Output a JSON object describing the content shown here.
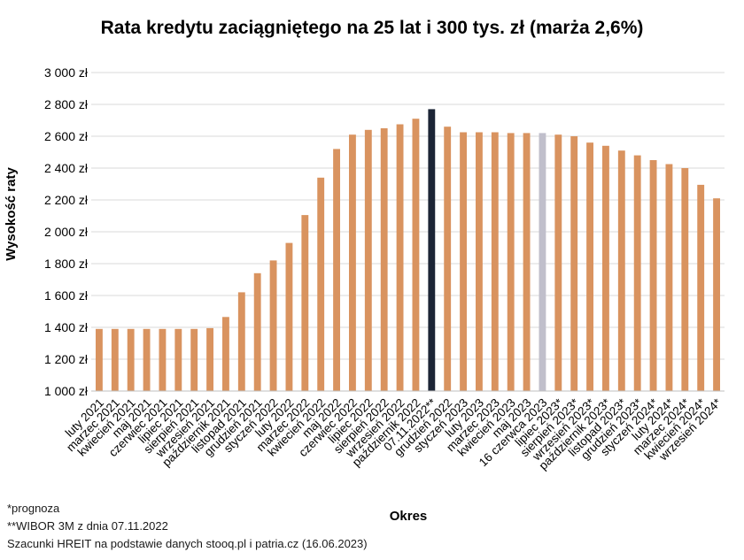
{
  "chart_data": {
    "type": "bar",
    "title": "Rata kredytu zaciągniętego na 25 lat i 300 tys. zł (marża 2,6%)",
    "xlabel": "Okres",
    "ylabel": "Wysokość raty",
    "ylim": [
      1000,
      3000
    ],
    "yticks": [
      "1 000 zł",
      "1 200 zł",
      "1 400 zł",
      "1 600 zł",
      "1 800 zł",
      "2 000 zł",
      "2 200 zł",
      "2 400 zł",
      "2 600 zł",
      "2 800 zł",
      "3 000 zł"
    ],
    "grid": true,
    "categories": [
      "luty 2021",
      "marzec 2021",
      "kwiecień 2021",
      "maj 2021",
      "czerwiec 2021",
      "lipiec 2021",
      "sierpień 2021",
      "wrzesień 2021",
      "październik 2021",
      "listopad 2021",
      "grudzień 2021",
      "styczeń 2022",
      "luty 2022",
      "marzec 2022",
      "kwiecień 2022",
      "maj 2022",
      "czerwiec 2022",
      "lipiec 2022",
      "sierpień 2022",
      "wrzesień 2022",
      "październik 2022",
      "07.11.2022**",
      "grudzień 2022",
      "styczeń 2023",
      "luty 2023",
      "marzec 2023",
      "kwiecień 2023",
      "maj 2023",
      "16 czerwca 2023",
      "lipiec 2023*",
      "sierpień 2023*",
      "wrzesień 2023*",
      "październik 2023*",
      "listopad 2023*",
      "grudzień 2023*",
      "styczeń 2024*",
      "luty 2024*",
      "marzec 2024*",
      "kwiecień 2024*",
      "wrzesień 2024*"
    ],
    "values": [
      1390,
      1390,
      1390,
      1390,
      1390,
      1390,
      1390,
      1395,
      1465,
      1620,
      1740,
      1820,
      1930,
      2105,
      2340,
      2520,
      2610,
      2640,
      2650,
      2675,
      2710,
      2770,
      2660,
      2625,
      2625,
      2625,
      2620,
      2620,
      2620,
      2610,
      2600,
      2560,
      2540,
      2510,
      2480,
      2450,
      2425,
      2400,
      2295,
      2210
    ],
    "colors": {
      "default": "#D9935F",
      "highlight_dark": "#1C2536",
      "highlight_light": "#C0BFCB",
      "grid": "#D9D9D9"
    },
    "highlight_dark_index": 21,
    "highlight_light_index": 28
  },
  "notes": {
    "forecast": "*prognoza",
    "wibor": "**WIBOR 3M z dnia 07.11.2022",
    "source": "Szacunki HREIT na podstawie danych stooq.pl i patria.cz (16.06.2023)"
  }
}
